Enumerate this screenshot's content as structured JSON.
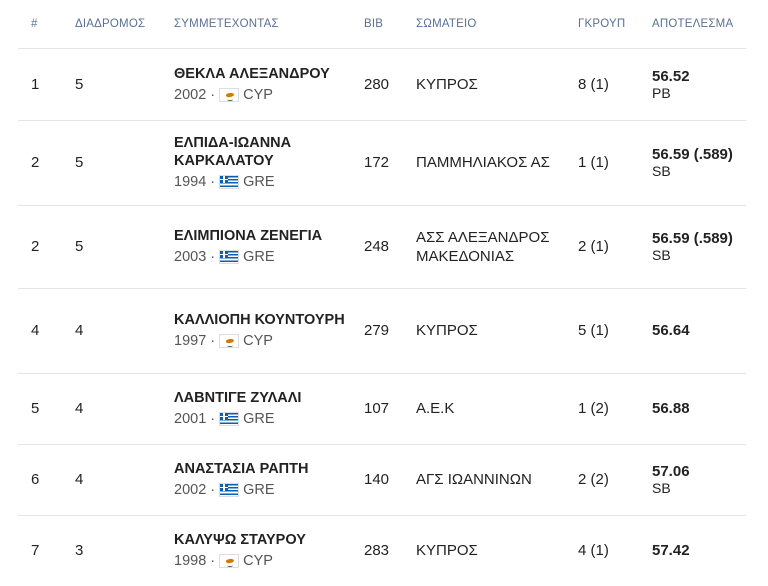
{
  "columns": [
    "#",
    "ΔΙΑΔΡΟΜΟΣ",
    "ΣΥΜΜΕΤΕΧΟΝΤΑΣ",
    "BIB",
    "ΣΩΜΑΤΕΙΟ",
    "ΓΚΡΟΥΠ",
    "ΑΠΟΤΕΛΕΣΜΑ"
  ],
  "rows": [
    {
      "rank": "1",
      "lane": "5",
      "name": "ΘΕΚΛΑ ΑΛΕΞΑΝΔΡΟΥ",
      "year": "2002 ·",
      "flag": "cyprus-flag-icon",
      "country": "CYP",
      "bib": "280",
      "club": "ΚΥΠΡΟΣ",
      "group": "8 (1)",
      "result": "56.52",
      "tag": "PB"
    },
    {
      "rank": "2",
      "lane": "5",
      "name": "ΕΛΠΙΔΑ-ΙΩΑΝΝΑ ΚΑΡΚΑΛΑΤΟΥ",
      "year": "1994 ·",
      "flag": "greece-flag-icon",
      "country": "GRE",
      "bib": "172",
      "club": "ΠΑΜΜΗΛΙΑΚΟΣ ΑΣ",
      "group": "1 (1)",
      "result": "56.59 (.589)",
      "tag": "SB"
    },
    {
      "rank": "2",
      "lane": "5",
      "name": "ΕΛΙΜΠΙΟΝΑ ΖΕΝΕΓΙΑ",
      "year": "2003 ·",
      "flag": "greece-flag-icon",
      "country": "GRE",
      "bib": "248",
      "club": "ΑΣΣ ΑΛΕΞΑΝΔΡΟΣ ΜΑΚΕΔΟΝΙΑΣ",
      "group": "2 (1)",
      "result": "56.59 (.589)",
      "tag": "SB"
    },
    {
      "rank": "4",
      "lane": "4",
      "name": "ΚΑΛΛΙΟΠΗ ΚΟΥΝΤΟΥΡΗ",
      "year": "1997 ·",
      "flag": "cyprus-flag-icon",
      "country": "CYP",
      "bib": "279",
      "club": "ΚΥΠΡΟΣ",
      "group": "5 (1)",
      "result": "56.64",
      "tag": ""
    },
    {
      "rank": "5",
      "lane": "4",
      "name": "ΛΑΒΝΤΙΓΕ ΖΥΛΑΛΙ",
      "year": "2001 ·",
      "flag": "greece-flag-icon",
      "country": "GRE",
      "bib": "107",
      "club": "Α.Ε.Κ",
      "group": "1 (2)",
      "result": "56.88",
      "tag": ""
    },
    {
      "rank": "6",
      "lane": "4",
      "name": "ΑΝΑΣΤΑΣΙΑ ΡΑΠΤΗ",
      "year": "2002 ·",
      "flag": "greece-flag-icon",
      "country": "GRE",
      "bib": "140",
      "club": "ΑΓΣ ΙΩΑΝΝΙΝΩΝ",
      "group": "2 (2)",
      "result": "57.06",
      "tag": "SB"
    },
    {
      "rank": "7",
      "lane": "3",
      "name": "ΚΑΛΥΨΩ ΣΤΑΥΡΟΥ",
      "year": "1998 ·",
      "flag": "cyprus-flag-icon",
      "country": "CYP",
      "bib": "283",
      "club": "ΚΥΠΡΟΣ",
      "group": "4 (1)",
      "result": "57.42",
      "tag": ""
    }
  ]
}
